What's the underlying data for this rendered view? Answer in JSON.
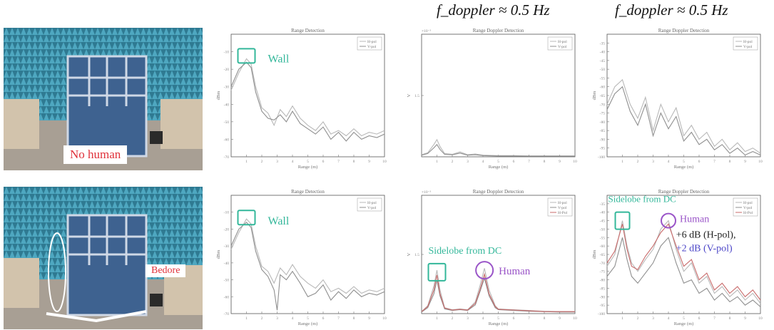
{
  "headers": {
    "col3": "f_doppler ≈ 0.5 Hz",
    "col4": "f_doppler ≈ 0.5 Hz"
  },
  "photos": {
    "top_label": "No human",
    "bottom_label": "Bedore"
  },
  "colors": {
    "wall": "#33b79a",
    "human": "#9a55c8",
    "hpol_text": "#222222",
    "vpol_text": "#4d47c8",
    "series_hpol": "#b8b8b8",
    "series_vpol": "#8f8f8f",
    "series_diff": "#c86a6a",
    "series_diff2": "#7060c0"
  },
  "chart_data": [
    {
      "id": "r1c2",
      "type": "line",
      "title": "Range Detection",
      "xlabel": "Range (m)",
      "ylabel": "dBm",
      "xlim": [
        0,
        10
      ],
      "ylim": [
        -70,
        0
      ],
      "xticks": [
        1,
        2,
        3,
        4,
        5,
        6,
        7,
        8,
        9,
        10
      ],
      "yticks": [
        -10,
        -20,
        -30,
        -40,
        -50,
        -60,
        -70
      ],
      "legend": [
        "H-pol",
        "V-pol"
      ],
      "legend_position": "top-right",
      "series": [
        {
          "name": "H-pol",
          "x": [
            0,
            0.5,
            1,
            1.3,
            1.6,
            2,
            2.4,
            2.8,
            3.2,
            3.6,
            4,
            4.5,
            5,
            5.5,
            6,
            6.5,
            7,
            7.5,
            8,
            8.5,
            9,
            9.5,
            10
          ],
          "y": [
            -32,
            -22,
            -14,
            -17,
            -30,
            -42,
            -45,
            -52,
            -43,
            -47,
            -41,
            -48,
            -52,
            -55,
            -50,
            -57,
            -55,
            -58,
            -54,
            -58,
            -56,
            -57,
            -55
          ]
        },
        {
          "name": "V-pol",
          "x": [
            0,
            0.5,
            1,
            1.3,
            1.6,
            2,
            2.4,
            2.8,
            3.2,
            3.6,
            4,
            4.5,
            5,
            5.5,
            6,
            6.5,
            7,
            7.5,
            8,
            8.5,
            9,
            9.5,
            10
          ],
          "y": [
            -30,
            -20,
            -16,
            -19,
            -33,
            -44,
            -48,
            -49,
            -46,
            -50,
            -44,
            -51,
            -54,
            -57,
            -53,
            -60,
            -56,
            -61,
            -56,
            -60,
            -58,
            -59,
            -57
          ]
        }
      ],
      "annotations": [
        {
          "text": "Wall",
          "color": "wall"
        }
      ]
    },
    {
      "id": "r1c3",
      "type": "line",
      "title": "Range Doppler Detection",
      "xlabel": "Range (m)",
      "ylabel": "V",
      "exponent_label": "×10⁻³",
      "xlim": [
        0,
        10
      ],
      "ylim": [
        0,
        3
      ],
      "xticks": [
        1,
        2,
        3,
        4,
        5,
        6,
        7,
        8,
        9,
        10
      ],
      "yticks": [
        1.5
      ],
      "legend": [
        "H-pol",
        "V-pol"
      ],
      "legend_position": "top-right",
      "series": [
        {
          "name": "H-pol",
          "x": [
            0,
            0.4,
            0.8,
            1,
            1.2,
            1.5,
            2,
            2.5,
            3,
            3.5,
            4,
            5,
            6,
            7,
            8,
            9,
            10
          ],
          "y": [
            0.05,
            0.1,
            0.3,
            0.42,
            0.25,
            0.08,
            0.06,
            0.12,
            0.05,
            0.07,
            0.04,
            0.03,
            0.03,
            0.02,
            0.02,
            0.02,
            0.02
          ]
        },
        {
          "name": "V-pol",
          "x": [
            0,
            0.4,
            0.8,
            1,
            1.2,
            1.5,
            2,
            2.5,
            3,
            3.5,
            4,
            5,
            6,
            7,
            8,
            9,
            10
          ],
          "y": [
            0.04,
            0.08,
            0.22,
            0.3,
            0.18,
            0.06,
            0.05,
            0.09,
            0.04,
            0.05,
            0.03,
            0.02,
            0.02,
            0.02,
            0.02,
            0.02,
            0.02
          ]
        }
      ]
    },
    {
      "id": "r1c4",
      "type": "line",
      "title": "Range Doppler Detection",
      "xlabel": "Range (m)",
      "ylabel": "dBm",
      "xlim": [
        0,
        10
      ],
      "ylim": [
        -100,
        -30
      ],
      "xticks": [
        1,
        2,
        3,
        4,
        5,
        6,
        7,
        8,
        9,
        10
      ],
      "yticks": [
        -35,
        -40,
        -45,
        -50,
        -55,
        -60,
        -65,
        -70,
        -75,
        -80,
        -85,
        -90,
        -95,
        -100
      ],
      "legend": [
        "H-pol",
        "V-pol"
      ],
      "legend_position": "top-right",
      "series": [
        {
          "name": "H-pol",
          "x": [
            0,
            0.5,
            1,
            1.5,
            2,
            2.5,
            3,
            3.5,
            4,
            4.5,
            5,
            5.5,
            6,
            6.5,
            7,
            7.5,
            8,
            8.5,
            9,
            9.5,
            10
          ],
          "y": [
            -70,
            -60,
            -56,
            -70,
            -78,
            -66,
            -85,
            -70,
            -80,
            -72,
            -88,
            -82,
            -90,
            -86,
            -94,
            -90,
            -96,
            -92,
            -97,
            -95,
            -98
          ]
        },
        {
          "name": "V-pol",
          "x": [
            0,
            0.5,
            1,
            1.5,
            2,
            2.5,
            3,
            3.5,
            4,
            4.5,
            5,
            5.5,
            6,
            6.5,
            7,
            7.5,
            8,
            8.5,
            9,
            9.5,
            10
          ],
          "y": [
            -73,
            -64,
            -60,
            -74,
            -82,
            -70,
            -88,
            -75,
            -84,
            -77,
            -91,
            -86,
            -93,
            -90,
            -96,
            -93,
            -98,
            -95,
            -99,
            -97,
            -99
          ]
        }
      ]
    },
    {
      "id": "r2c2",
      "type": "line",
      "title": "Range Detection",
      "xlabel": "Range (m)",
      "ylabel": "dBm",
      "xlim": [
        0,
        10
      ],
      "ylim": [
        -70,
        0
      ],
      "xticks": [
        1,
        2,
        3,
        4,
        5,
        6,
        7,
        8,
        9,
        10
      ],
      "yticks": [
        -10,
        -20,
        -30,
        -40,
        -50,
        -60,
        -70
      ],
      "legend": [
        "H-pol",
        "V-pol"
      ],
      "legend_position": "top-right",
      "series": [
        {
          "name": "H-pol",
          "x": [
            0,
            0.5,
            1,
            1.3,
            1.6,
            2,
            2.4,
            2.8,
            3.2,
            3.6,
            4,
            4.5,
            5,
            5.5,
            6,
            6.5,
            7,
            7.5,
            8,
            8.5,
            9,
            9.5,
            10
          ],
          "y": [
            -32,
            -22,
            -14,
            -17,
            -30,
            -42,
            -45,
            -52,
            -43,
            -47,
            -41,
            -48,
            -52,
            -55,
            -50,
            -57,
            -55,
            -58,
            -54,
            -58,
            -56,
            -57,
            -55
          ]
        },
        {
          "name": "V-pol",
          "x": [
            0,
            0.5,
            1,
            1.3,
            1.6,
            2,
            2.4,
            2.8,
            3,
            3.2,
            3.6,
            4,
            4.5,
            5,
            5.5,
            6,
            6.5,
            7,
            7.5,
            8,
            8.5,
            9,
            9.5,
            10
          ],
          "y": [
            -30,
            -20,
            -16,
            -19,
            -33,
            -44,
            -48,
            -56,
            -68,
            -47,
            -50,
            -45,
            -52,
            -60,
            -58,
            -53,
            -62,
            -57,
            -61,
            -56,
            -60,
            -58,
            -59,
            -57
          ]
        }
      ],
      "annotations": [
        {
          "text": "Wall",
          "color": "wall"
        }
      ]
    },
    {
      "id": "r2c3",
      "type": "line",
      "title": "Range Doppler Detection",
      "xlabel": "Range (m)",
      "ylabel": "V",
      "exponent_label": "×10⁻³",
      "xlim": [
        0,
        10
      ],
      "ylim": [
        0,
        3
      ],
      "xticks": [
        1,
        2,
        3,
        4,
        5,
        6,
        7,
        8,
        9,
        10
      ],
      "yticks": [
        1.5
      ],
      "legend": [
        "H-pol",
        "V-pol",
        "H-Pol"
      ],
      "legend_position": "top-right",
      "series": [
        {
          "name": "H-pol",
          "x": [
            0,
            0.4,
            0.8,
            1,
            1.2,
            1.5,
            2,
            2.5,
            3,
            3.5,
            3.8,
            4.1,
            4.4,
            4.8,
            5,
            6,
            7,
            8,
            9,
            10
          ],
          "y": [
            0.05,
            0.2,
            0.7,
            1.1,
            0.6,
            0.15,
            0.1,
            0.12,
            0.1,
            0.3,
            0.7,
            1.15,
            0.6,
            0.2,
            0.12,
            0.1,
            0.08,
            0.06,
            0.05,
            0.05
          ]
        },
        {
          "name": "V-pol",
          "x": [
            0,
            0.4,
            0.8,
            1,
            1.2,
            1.5,
            2,
            2.5,
            3,
            3.5,
            3.8,
            4.1,
            4.4,
            4.8,
            5,
            6,
            7,
            8,
            9,
            10
          ],
          "y": [
            0.04,
            0.15,
            0.5,
            0.85,
            0.45,
            0.12,
            0.08,
            0.1,
            0.08,
            0.22,
            0.55,
            0.9,
            0.45,
            0.15,
            0.1,
            0.08,
            0.06,
            0.05,
            0.04,
            0.04
          ]
        },
        {
          "name": "H-Pol",
          "x": [
            0,
            0.4,
            0.8,
            1,
            1.2,
            1.5,
            2,
            2.5,
            3,
            3.5,
            3.8,
            4.1,
            4.4,
            4.8,
            5,
            6,
            7,
            8,
            9,
            10
          ],
          "y": [
            0.05,
            0.18,
            0.6,
            0.98,
            0.5,
            0.14,
            0.09,
            0.11,
            0.09,
            0.26,
            0.6,
            1.0,
            0.5,
            0.18,
            0.11,
            0.09,
            0.07,
            0.05,
            0.05,
            0.05
          ]
        }
      ],
      "annotations": [
        {
          "text": "Sidelobe from DC",
          "color": "wall"
        },
        {
          "text": "Human",
          "color": "human"
        }
      ]
    },
    {
      "id": "r2c4",
      "type": "line",
      "title": "Range Doppler Detection",
      "xlabel": "Range (m)",
      "ylabel": "dBm",
      "xlim": [
        0,
        10
      ],
      "ylim": [
        -100,
        -30
      ],
      "xticks": [
        1,
        2,
        3,
        4,
        5,
        6,
        7,
        8,
        9,
        10
      ],
      "yticks": [
        -35,
        -40,
        -45,
        -50,
        -55,
        -60,
        -65,
        -70,
        -75,
        -80,
        -85,
        -90,
        -95,
        -100
      ],
      "legend": [
        "H-pol",
        "V-pol",
        "H-Pol"
      ],
      "legend_position": "top-right",
      "series": [
        {
          "name": "H-pol",
          "x": [
            0,
            0.5,
            1,
            1.3,
            1.6,
            2,
            2.5,
            3,
            3.5,
            4,
            4.5,
            5,
            5.5,
            6,
            6.5,
            7,
            7.5,
            8,
            8.5,
            9,
            9.5,
            10
          ],
          "y": [
            -72,
            -65,
            -45,
            -60,
            -70,
            -75,
            -68,
            -62,
            -50,
            -45,
            -62,
            -75,
            -70,
            -82,
            -78,
            -88,
            -84,
            -90,
            -86,
            -92,
            -88,
            -94
          ]
        },
        {
          "name": "V-pol",
          "x": [
            0,
            0.5,
            1,
            1.3,
            1.6,
            2,
            2.5,
            3,
            3.5,
            4,
            4.5,
            5,
            5.5,
            6,
            6.5,
            7,
            7.5,
            8,
            8.5,
            9,
            9.5,
            10
          ],
          "y": [
            -78,
            -72,
            -55,
            -68,
            -78,
            -82,
            -76,
            -70,
            -60,
            -55,
            -70,
            -82,
            -80,
            -88,
            -85,
            -92,
            -88,
            -93,
            -90,
            -95,
            -92,
            -96
          ]
        },
        {
          "name": "H-Pol",
          "x": [
            0,
            0.5,
            1,
            1.3,
            1.6,
            2,
            2.5,
            3,
            3.5,
            4,
            4.5,
            5,
            5.5,
            6,
            6.5,
            7,
            7.5,
            8,
            8.5,
            9,
            9.5,
            10
          ],
          "y": [
            -70,
            -63,
            -47,
            -62,
            -72,
            -74,
            -66,
            -60,
            -52,
            -47,
            -60,
            -72,
            -68,
            -80,
            -76,
            -86,
            -82,
            -88,
            -84,
            -90,
            -86,
            -92
          ]
        }
      ],
      "annotations": [
        {
          "text": "Sidelobe from DC",
          "color": "wall"
        },
        {
          "text": "Human",
          "color": "human"
        },
        {
          "text": "+6 dB (H-pol),",
          "color": "hpol_text"
        },
        {
          "text": "+2 dB (V-pol)",
          "color": "vpol_text"
        }
      ]
    }
  ]
}
